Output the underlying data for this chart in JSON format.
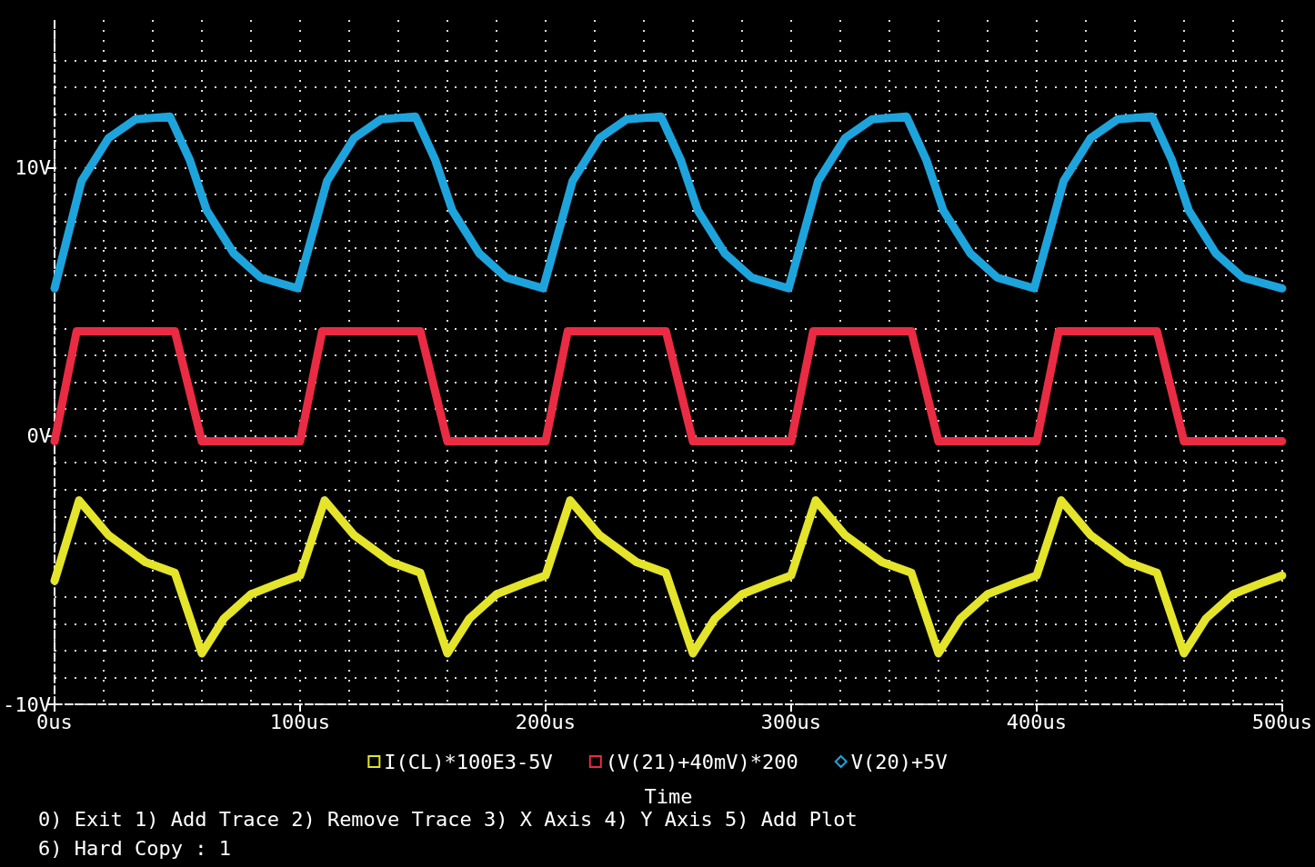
{
  "chart_data": {
    "type": "line",
    "xlabel": "Time",
    "legend": "bottom",
    "line_style": "solid",
    "grid": true,
    "xlim": [
      0,
      500
    ],
    "xticks": [
      {
        "value": 0,
        "label": "0us"
      },
      {
        "value": 100,
        "label": "100us"
      },
      {
        "value": 200,
        "label": "200us"
      },
      {
        "value": 300,
        "label": "300us"
      },
      {
        "value": 400,
        "label": "400us"
      },
      {
        "value": 500,
        "label": "500us"
      }
    ],
    "ylim": [
      -10,
      15.5
    ],
    "yticks": [
      {
        "value": -10,
        "label": "-10V"
      },
      {
        "value": 0,
        "label": "0V"
      },
      {
        "value": 10,
        "label": "10V"
      }
    ],
    "series": [
      {
        "name": "I(CL)*100E3-5V",
        "color": "#e4e42a",
        "x": [
          0,
          10,
          22,
          37,
          49,
          60,
          69,
          80,
          91,
          100,
          110,
          122,
          137,
          149,
          160,
          169,
          180,
          191,
          200,
          210,
          222,
          237,
          249,
          260,
          269,
          280,
          291,
          300,
          310,
          322,
          337,
          349,
          360,
          369,
          380,
          391,
          400,
          410,
          422,
          437,
          449,
          460,
          469,
          480,
          491,
          500
        ],
        "values": [
          -5.4,
          -2.4,
          -3.7,
          -4.7,
          -5.1,
          -8.1,
          -6.8,
          -5.9,
          -5.5,
          -5.2,
          -2.4,
          -3.7,
          -4.7,
          -5.1,
          -8.1,
          -6.8,
          -5.9,
          -5.5,
          -5.2,
          -2.4,
          -3.7,
          -4.7,
          -5.1,
          -8.1,
          -6.8,
          -5.9,
          -5.5,
          -5.2,
          -2.4,
          -3.7,
          -4.7,
          -5.1,
          -8.1,
          -6.8,
          -5.9,
          -5.5,
          -5.2,
          -2.4,
          -3.7,
          -4.7,
          -5.1,
          -8.1,
          -6.8,
          -5.9,
          -5.5,
          -5.2
        ]
      },
      {
        "name": "(V(21)+40mV)*200",
        "color": "#ea2b44",
        "x": [
          0,
          9,
          49,
          60,
          100,
          109,
          149,
          160,
          200,
          209,
          249,
          260,
          300,
          309,
          349,
          360,
          400,
          409,
          449,
          460,
          500
        ],
        "values": [
          -0.2,
          3.9,
          3.9,
          -0.2,
          -0.2,
          3.9,
          3.9,
          -0.2,
          -0.2,
          3.9,
          3.9,
          -0.2,
          -0.2,
          3.9,
          3.9,
          -0.2,
          -0.2,
          3.9,
          3.9,
          -0.2,
          -0.2
        ]
      },
      {
        "name": "V(20)+5V",
        "color": "#1ea4dc",
        "x": [
          0,
          11,
          22,
          33,
          47,
          55,
          62,
          73,
          84,
          99,
          111,
          122,
          133,
          147,
          155,
          162,
          173,
          184,
          199,
          211,
          222,
          233,
          247,
          255,
          262,
          273,
          284,
          299,
          311,
          322,
          333,
          347,
          355,
          362,
          373,
          384,
          399,
          411,
          422,
          433,
          447,
          455,
          462,
          473,
          484,
          500
        ],
        "values": [
          5.5,
          9.5,
          11.1,
          11.8,
          11.9,
          10.3,
          8.4,
          6.8,
          5.9,
          5.5,
          9.5,
          11.1,
          11.8,
          11.9,
          10.3,
          8.4,
          6.8,
          5.9,
          5.5,
          9.5,
          11.1,
          11.8,
          11.9,
          10.3,
          8.4,
          6.8,
          5.9,
          5.5,
          9.5,
          11.1,
          11.8,
          11.9,
          10.3,
          8.4,
          6.8,
          5.9,
          5.5,
          9.5,
          11.1,
          11.8,
          11.9,
          10.3,
          8.4,
          6.8,
          5.9,
          5.5
        ]
      }
    ],
    "annotations": [
      "0) Exit 1) Add Trace 2) Remove Trace 3) X Axis 4) Y Axis 5) Add Plot",
      "6) Hard Copy : 1"
    ]
  }
}
